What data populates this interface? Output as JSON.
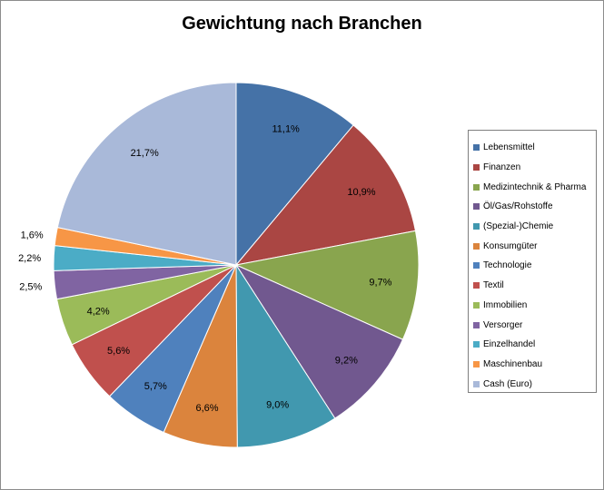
{
  "chart_data": {
    "type": "pie",
    "title": "Gewichtung nach Branchen",
    "unit": "%",
    "legend_position": "right",
    "slices": [
      {
        "name": "Lebensmittel",
        "value": 11.1,
        "label": "11,1%",
        "color": "#4572A7"
      },
      {
        "name": "Finanzen",
        "value": 10.9,
        "label": "10,9%",
        "color": "#AA4643"
      },
      {
        "name": "Medizintechnik & Pharma",
        "value": 9.7,
        "label": "9,7%",
        "color": "#89A54E"
      },
      {
        "name": "Öl/Gas/Rohstoffe",
        "value": 9.2,
        "label": "9,2%",
        "color": "#71588F"
      },
      {
        "name": "(Spezial-)Chemie",
        "value": 9.0,
        "label": "9,0%",
        "color": "#4198AF"
      },
      {
        "name": "Konsumgüter",
        "value": 6.6,
        "label": "6,6%",
        "color": "#DB843D"
      },
      {
        "name": "Technologie",
        "value": 5.7,
        "label": "5,7%",
        "color": "#4F81BD"
      },
      {
        "name": "Textil",
        "value": 5.6,
        "label": "5,6%",
        "color": "#C0504D"
      },
      {
        "name": "Immobilien",
        "value": 4.2,
        "label": "4,2%",
        "color": "#9BBB59"
      },
      {
        "name": "Versorger",
        "value": 2.5,
        "label": "2,5%",
        "color": "#8064A2"
      },
      {
        "name": "Einzelhandel",
        "value": 2.2,
        "label": "2,2%",
        "color": "#4BACC6"
      },
      {
        "name": "Maschinenbau",
        "value": 1.6,
        "label": "1,6%",
        "color": "#F79646"
      },
      {
        "name": "Cash (Euro)",
        "value": 21.7,
        "label": "21,7%",
        "color": "#A9B9D9"
      }
    ]
  }
}
